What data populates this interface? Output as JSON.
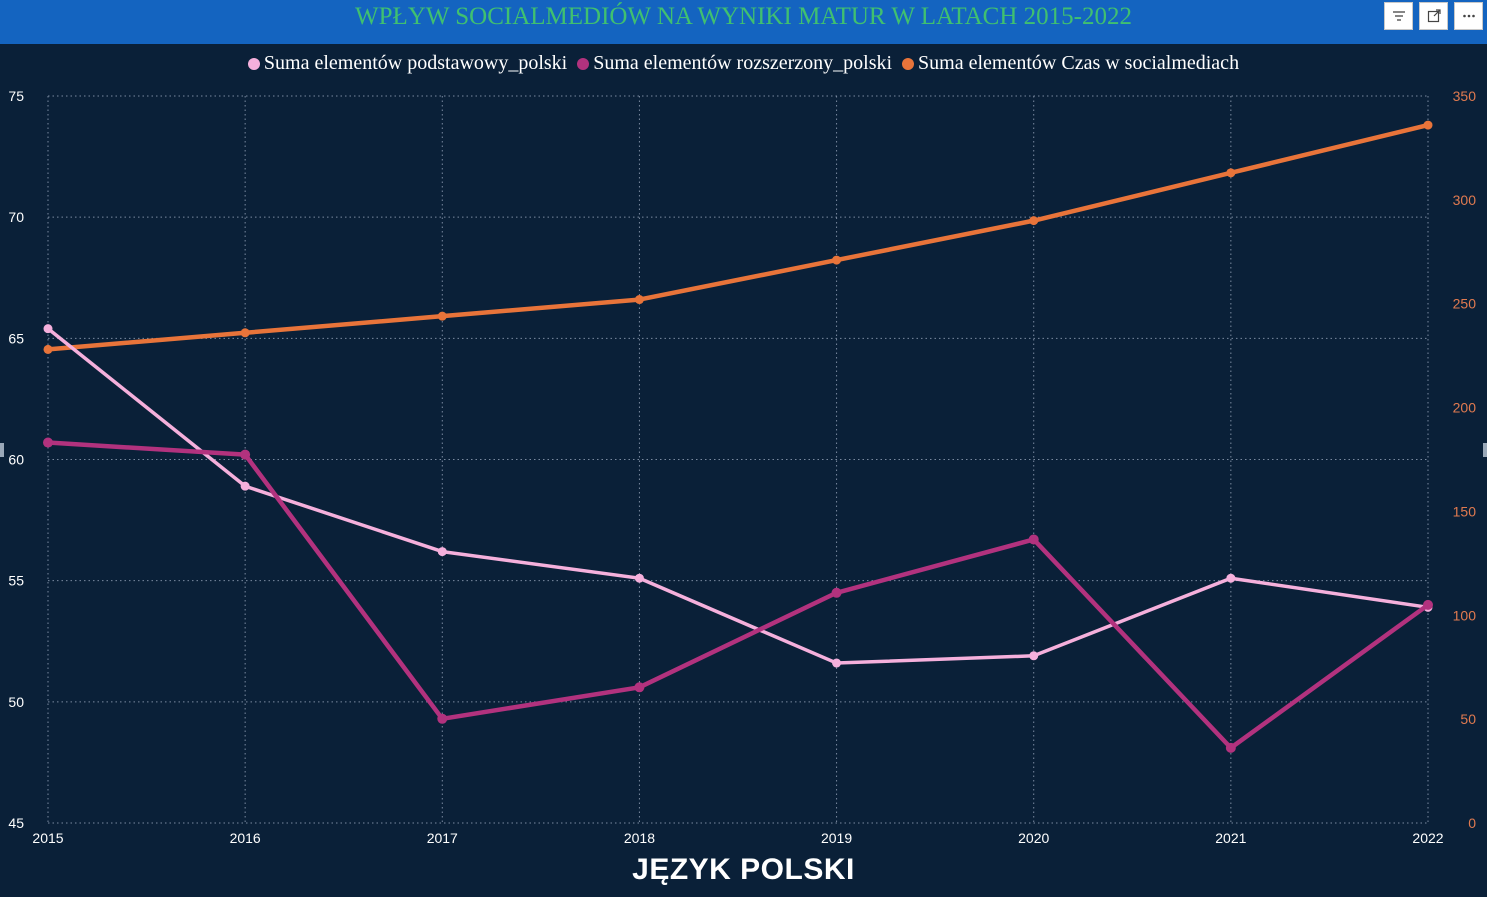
{
  "header": {
    "title": "WPŁYW SOCIALMEDIÓW NA WYNIKI MATUR W LATACH 2015-2022",
    "tools": [
      {
        "name": "filter-icon"
      },
      {
        "name": "focus-mode-icon"
      },
      {
        "name": "more-options-icon"
      }
    ]
  },
  "colors": {
    "background": "#0a2038",
    "header": "#1464c0",
    "title": "#40c070",
    "grid": "#7a8aa0",
    "left_axis_text": "#ffffff",
    "right_axis_text": "#e07a50"
  },
  "chart_data": {
    "type": "line",
    "title": "WPŁYW SOCIALMEDIÓW NA WYNIKI MATUR W LATACH 2015-2022",
    "xlabel": "JĘZYK POLSKI",
    "x": [
      "2015",
      "2016",
      "2017",
      "2018",
      "2019",
      "2020",
      "2021",
      "2022"
    ],
    "y_left": {
      "range": [
        45,
        75
      ],
      "ticks": [
        "45",
        "50",
        "55",
        "60",
        "65",
        "70",
        "75"
      ]
    },
    "y_right": {
      "range": [
        0,
        350
      ],
      "ticks": [
        "0",
        "50",
        "100",
        "150",
        "200",
        "250",
        "300",
        "350"
      ]
    },
    "grid": true,
    "legend_position": "top-center",
    "series": [
      {
        "name": "Suma elementów podstawowy_polski",
        "color": "#f5b0dc",
        "axis": "left",
        "values": [
          65.4,
          58.9,
          56.2,
          55.1,
          51.6,
          51.9,
          55.1,
          53.9
        ]
      },
      {
        "name": "Suma elementów rozszerzony_polski",
        "color": "#b2327e",
        "axis": "left",
        "values": [
          60.7,
          60.2,
          49.3,
          50.6,
          54.5,
          56.7,
          48.1,
          54.0
        ]
      },
      {
        "name": "Suma elementów Czas w socialmediach",
        "color": "#e8743a",
        "axis": "right",
        "values": [
          228,
          236,
          244,
          252,
          271,
          290,
          313,
          336
        ]
      }
    ]
  }
}
